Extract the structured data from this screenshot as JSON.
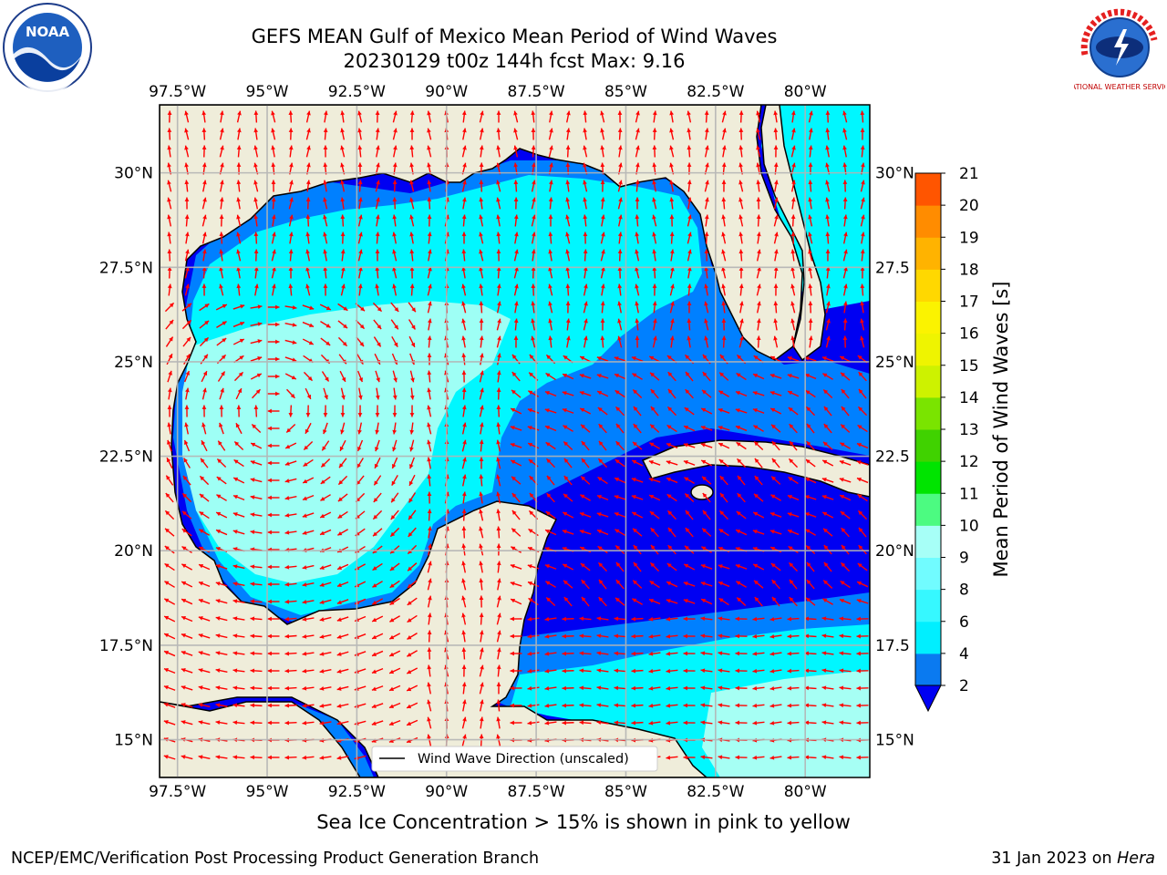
{
  "header": {
    "title_line1": "GEFS MEAN Gulf of Mexico Mean Period of Wind Waves",
    "title_line2": "20230129 t00z 144h fcst   Max: 9.16"
  },
  "logos": {
    "noaa_text": "NOAA",
    "nws_ring_text": "NATIONAL WEATHER SERVICE"
  },
  "map": {
    "lon_ticks": [
      "97.5°W",
      "95°W",
      "92.5°W",
      "90°W",
      "87.5°W",
      "85°W",
      "82.5°W",
      "80°W"
    ],
    "lat_ticks_left": [
      "30°N",
      "27.5°N",
      "25°N",
      "22.5°N",
      "20°N",
      "17.5°N",
      "15°N"
    ],
    "lat_ticks_right": [
      "30°N",
      "27.5",
      "25°N",
      "22.5",
      "20°N",
      "17.5",
      "15°N"
    ],
    "legend_label": "Wind Wave Direction (unscaled)",
    "colors": {
      "land": "#efedda",
      "ocean_light": "#a6fff4",
      "ocean_cyan": "#00f7ff",
      "ocean_blue": "#0080ff",
      "ocean_deep": "#0000f2",
      "arrow": "#ff0000",
      "grid": "#b4b4b4"
    }
  },
  "colorbar": {
    "label": "Mean Period of Wind Waves [s]",
    "ticks": [
      "2",
      "4",
      "6",
      "8",
      "9",
      "10",
      "11",
      "12",
      "13",
      "14",
      "15",
      "16",
      "17",
      "18",
      "19",
      "20",
      "21"
    ],
    "colors": [
      "#0a7af0",
      "#00efff",
      "#36f8ff",
      "#71fcff",
      "#a7fff7",
      "#4cfb81",
      "#00e400",
      "#40d200",
      "#7ae400",
      "#cdf200",
      "#eff400",
      "#fbf300",
      "#ffd800",
      "#ffb300",
      "#ff8c00",
      "#ff5500",
      "#ff2600",
      "#ff0000"
    ],
    "under_color": "#0000f2"
  },
  "footer": {
    "note": "Sea Ice Concentration > 15% is shown in pink to yellow",
    "credit_left": "NCEP/EMC/Verification Post Processing Product Generation Branch",
    "credit_right_date": "31 Jan 2023 on ",
    "credit_right_host": "Hera"
  }
}
